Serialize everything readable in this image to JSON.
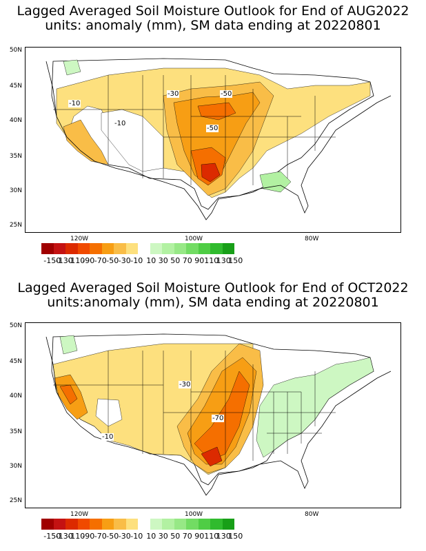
{
  "panels": [
    {
      "title_line1": "Lagged Averaged Soil Moisture Outlook for End of AUG2022",
      "title_line2": "units: anomaly (mm), SM data ending at 20220801",
      "contour_labels": [
        "-10",
        "-10",
        "-30",
        "-50",
        "-50"
      ],
      "lat_labels": [
        "50N",
        "45N",
        "40N",
        "35N",
        "30N",
        "25N"
      ],
      "lon_labels": [
        "120W",
        "100W",
        "80W"
      ]
    },
    {
      "title_line1": "Lagged Averaged Soil Moisture Outlook for End of OCT2022",
      "title_line2": "units:anomaly (mm), SM data ending at 20220801",
      "contour_labels": [
        "-30",
        "-70",
        "-10"
      ],
      "lat_labels": [
        "50N",
        "45N",
        "40N",
        "35N",
        "30N",
        "25N"
      ],
      "lon_labels": [
        "120W",
        "100W",
        "80W"
      ]
    }
  ],
  "legend": {
    "labels": [
      "-150",
      "-130",
      "-110",
      "-90",
      "-70",
      "-50",
      "-30",
      "-10",
      "10",
      "30",
      "50",
      "70",
      "90",
      "110",
      "130",
      "150"
    ],
    "colors": [
      "#a00000",
      "#c41212",
      "#dc2a00",
      "#f04a00",
      "#f56f00",
      "#f79e14",
      "#f9bd47",
      "#fde07e",
      "#ffffff",
      "#cdf7c2",
      "#b2f1a2",
      "#97e886",
      "#72dc63",
      "#4fcd45",
      "#30bb2e",
      "#189f18"
    ]
  }
}
